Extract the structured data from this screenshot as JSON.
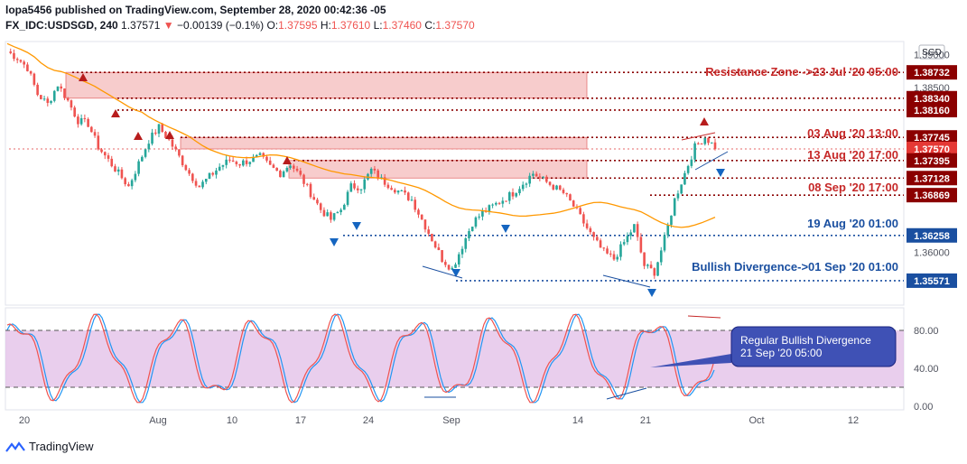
{
  "header": {
    "line1": "lopa5456 published on TradingView.com, September 28, 2020 00:42:36 -05",
    "symbol": "FX_IDC:USDSGD, 240",
    "last": "1.37571",
    "change": "−0.00139 (−0.1%)",
    "o_label": "O:",
    "o": "1.37595",
    "h_label": "H:",
    "h": "1.37610",
    "l_label": "L:",
    "l": "1.37460",
    "c_label": "C:",
    "c": "1.37570"
  },
  "footer": {
    "brand": "TradingView"
  },
  "colors": {
    "up": "#26a69a",
    "down": "#ef5350",
    "ma": "#ff9800",
    "zone_fill": "#f4b6b6",
    "dotted_red": "#8b0000",
    "dotted_blue": "#1a4fa0",
    "stoch_k": "#2196f3",
    "stoch_d": "#ef5350",
    "stoch_band": "#e1bee7",
    "callout_fill": "#3f51b5"
  },
  "chart_data": [
    {
      "type": "candlestick",
      "price_scale": {
        "label": "SGD",
        "ylim": [
          1.352,
          1.392
        ],
        "ticks": [
          1.39,
          1.385,
          1.36
        ]
      },
      "x_labels": [
        "20",
        "Aug",
        "10",
        "17",
        "24",
        "Sep",
        "14",
        "21",
        "Oct",
        "12"
      ],
      "moving_average": "orange",
      "price_tags": [
        {
          "value": "1.38732",
          "kind": "red"
        },
        {
          "value": "1.38340",
          "kind": "red"
        },
        {
          "value": "1.38160",
          "kind": "red"
        },
        {
          "value": "1.37745",
          "kind": "red"
        },
        {
          "value": "1.37570",
          "kind": "last"
        },
        {
          "value": "17:29",
          "kind": "countdown"
        },
        {
          "value": "1.37395",
          "kind": "red"
        },
        {
          "value": "1.37128",
          "kind": "red"
        },
        {
          "value": "1.36869",
          "kind": "red"
        },
        {
          "value": "1.36258",
          "kind": "blue"
        },
        {
          "value": "1.35571",
          "kind": "blue"
        }
      ],
      "annotations": [
        {
          "text": "Resistance Zone ->23 Jul '20 05:00",
          "color": "red"
        },
        {
          "text": "03 Aug '20 13:00",
          "color": "red"
        },
        {
          "text": "13 Aug '20 17:00",
          "color": "red"
        },
        {
          "text": "08 Sep '20 17:00",
          "color": "red"
        },
        {
          "text": "19 Aug '20 01:00",
          "color": "blue"
        },
        {
          "text": "Bullish Divergence->01 Sep '20 01:00",
          "color": "blue"
        }
      ],
      "zones": [
        [
          1.3834,
          1.38732
        ],
        [
          1.3757,
          1.37745
        ],
        [
          1.37128,
          1.37395
        ]
      ],
      "close_path": [
        1.3905,
        1.3895,
        1.388,
        1.384,
        1.3825,
        1.3855,
        1.383,
        1.38,
        1.3795,
        1.376,
        1.374,
        1.372,
        1.37,
        1.3735,
        1.377,
        1.379,
        1.377,
        1.3745,
        1.372,
        1.37,
        1.3715,
        1.373,
        1.374,
        1.3735,
        1.374,
        1.3745,
        1.373,
        1.372,
        1.3735,
        1.3715,
        1.369,
        1.3665,
        1.365,
        1.3665,
        1.37,
        1.37,
        1.3725,
        1.371,
        1.37,
        1.369,
        1.368,
        1.365,
        1.362,
        1.359,
        1.3575,
        1.361,
        1.3645,
        1.366,
        1.367,
        1.368,
        1.369,
        1.3705,
        1.372,
        1.371,
        1.37,
        1.369,
        1.367,
        1.3645,
        1.362,
        1.36,
        1.359,
        1.3615,
        1.364,
        1.358,
        1.357,
        1.362,
        1.368,
        1.372,
        1.376,
        1.3775,
        1.376
      ]
    },
    {
      "type": "line",
      "indicator": "stochastic",
      "ylim": [
        0,
        100
      ],
      "ticks": [
        80,
        40,
        0
      ],
      "tick_labels": [
        "80.00",
        "40.00",
        "0.00"
      ],
      "band": [
        20,
        80
      ],
      "callout": {
        "line1": "Regular Bullish Divergence",
        "line2": "21 Sep '20 05:00"
      }
    }
  ]
}
